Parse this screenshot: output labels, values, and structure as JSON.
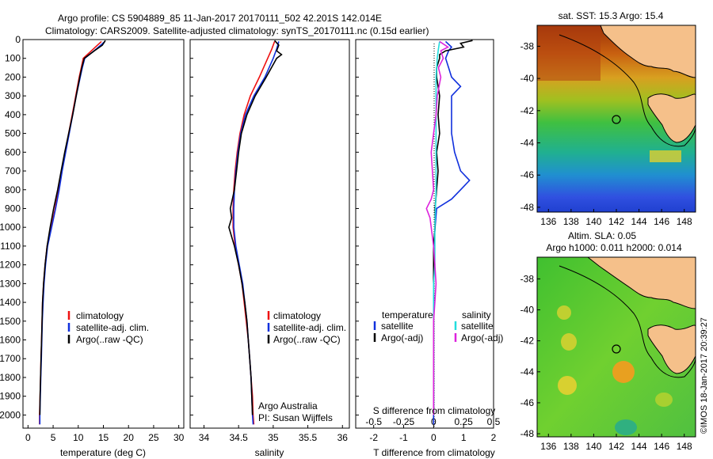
{
  "header": {
    "line1": "Argo profile: CS 5904889_85 11-Jan-2017 20170111_502 42.201S 142.014E",
    "line2": "Climatology: CARS2009. Satellite-adjusted climatology: synTS_20170111.nc (0.15d earlier)"
  },
  "colors": {
    "climatology": "#ee1111",
    "satellite": "#1030dd",
    "argo": "#000000",
    "argo_s": "#dd22dd",
    "satellite_s": "#22dddd",
    "land": "#f5c08a",
    "coast": "#000000"
  },
  "legends": {
    "profile": [
      "climatology",
      "satellite-adj. clim.",
      "Argo(..raw -QC)"
    ],
    "diff_temperature_title": "temperature",
    "diff_salinity_title": "salinity",
    "diff_items": [
      "satellite",
      "Argo(-adj)"
    ]
  },
  "credits": {
    "line1": "Argo Australia",
    "line2": "PI: Susan Wijffels",
    "imos": "©IMOS 18-Jan-2017 20:39:27"
  },
  "maps": {
    "sst_title": "sat. SST: 15.3 Argo: 15.4",
    "sla_title1": "Altim. SLA: 0.05",
    "sla_title2": "Argo h1000: 0.011 h2000: 0.014",
    "lon_ticks": [
      "136",
      "138",
      "140",
      "142",
      "144",
      "146",
      "148"
    ],
    "lat_ticks": [
      "-38",
      "-40",
      "-42",
      "-44",
      "-46",
      "-48"
    ]
  },
  "chart_data": [
    {
      "type": "line",
      "panel": "temperature",
      "xlabel": "temperature (deg C)",
      "xlim": [
        -1,
        31
      ],
      "ylim": [
        2070,
        0
      ],
      "x_ticks": [
        "0",
        "5",
        "10",
        "15",
        "20",
        "25",
        "30"
      ],
      "y_ticks": [
        "0",
        "100",
        "200",
        "300",
        "400",
        "500",
        "600",
        "700",
        "800",
        "900",
        "1000",
        "1100",
        "1200",
        "1300",
        "1400",
        "1500",
        "1600",
        "1700",
        "1800",
        "1900",
        "2000"
      ],
      "series": [
        {
          "name": "climatology",
          "depth": [
            10,
            50,
            100,
            150,
            200,
            300,
            400,
            500,
            600,
            700,
            800,
            900,
            1000,
            1100,
            1200,
            1300,
            1400,
            1500,
            1600,
            1700,
            1800,
            1900,
            2000,
            2050
          ],
          "values": [
            14.6,
            13.0,
            11.0,
            10.6,
            10.2,
            9.5,
            8.8,
            8.1,
            7.4,
            6.7,
            6.0,
            5.4,
            4.6,
            3.8,
            3.4,
            3.1,
            2.9,
            2.8,
            2.7,
            2.6,
            2.5,
            2.4,
            2.3,
            2.3
          ]
        },
        {
          "name": "satellite-adj. clim.",
          "depth": [
            10,
            50,
            100,
            150,
            200,
            300,
            400,
            500,
            600,
            700,
            800,
            900,
            1000,
            1100,
            1200,
            1300,
            1400,
            1500,
            1600,
            1700,
            1800,
            1900,
            2000,
            2050
          ],
          "values": [
            15.3,
            13.6,
            11.3,
            10.8,
            10.4,
            9.6,
            8.9,
            8.2,
            7.5,
            6.8,
            6.2,
            5.5,
            4.7,
            3.9,
            3.5,
            3.2,
            3.0,
            2.85,
            2.75,
            2.65,
            2.55,
            2.45,
            2.35,
            2.35
          ]
        },
        {
          "name": "Argo(..raw -QC)",
          "depth": [
            5,
            30,
            60,
            100,
            150,
            200,
            300,
            400,
            500,
            600,
            700,
            800,
            900,
            1000,
            1100,
            1200,
            1300,
            1400,
            1500,
            1600,
            1700,
            1800,
            1900,
            2000
          ],
          "values": [
            15.4,
            14.8,
            13.2,
            11.2,
            10.7,
            10.3,
            9.6,
            8.9,
            8.1,
            7.3,
            6.6,
            5.9,
            5.1,
            4.4,
            3.8,
            3.4,
            3.1,
            2.9,
            2.8,
            2.7,
            2.6,
            2.5,
            2.4,
            2.35
          ]
        }
      ]
    },
    {
      "type": "line",
      "panel": "salinity",
      "xlabel": "salinity",
      "xlim": [
        33.8,
        36.1
      ],
      "ylim": [
        2070,
        0
      ],
      "x_ticks": [
        "34",
        "34.5",
        "35",
        "35.5",
        "36"
      ],
      "series": [
        {
          "name": "climatology",
          "depth": [
            10,
            50,
            100,
            200,
            300,
            400,
            500,
            600,
            700,
            800,
            900,
            1000,
            1100,
            1200,
            1300,
            1400,
            1500,
            1600,
            1700,
            1800,
            1900,
            2000,
            2050
          ],
          "values": [
            35.02,
            34.98,
            34.92,
            34.8,
            34.67,
            34.58,
            34.52,
            34.48,
            34.45,
            34.43,
            34.42,
            34.42,
            34.45,
            34.5,
            34.55,
            34.58,
            34.61,
            34.64,
            34.66,
            34.68,
            34.7,
            34.71,
            34.72
          ]
        },
        {
          "name": "satellite-adj. clim.",
          "depth": [
            10,
            50,
            100,
            200,
            300,
            400,
            500,
            600,
            700,
            800,
            900,
            1000,
            1100,
            1200,
            1300,
            1400,
            1500,
            1600,
            1700,
            1800,
            1900,
            2000,
            2050
          ],
          "values": [
            35.08,
            35.05,
            35.0,
            34.88,
            34.72,
            34.6,
            34.53,
            34.49,
            34.46,
            34.44,
            34.43,
            34.43,
            34.46,
            34.51,
            34.56,
            34.59,
            34.62,
            34.64,
            34.66,
            34.68,
            34.69,
            34.7,
            34.71
          ]
        },
        {
          "name": "Argo(..raw -QC)",
          "depth": [
            5,
            30,
            60,
            80,
            100,
            200,
            300,
            400,
            500,
            600,
            700,
            800,
            900,
            950,
            1000,
            1050,
            1100,
            1200,
            1300,
            1400,
            1500,
            1600,
            1700,
            1800,
            1900,
            2000
          ],
          "values": [
            35.02,
            35.08,
            35.05,
            35.12,
            35.05,
            34.9,
            34.74,
            34.62,
            34.54,
            34.5,
            34.47,
            34.44,
            34.38,
            34.4,
            34.36,
            34.4,
            34.44,
            34.5,
            34.55,
            34.59,
            34.62,
            34.64,
            34.66,
            34.68,
            34.69,
            34.7
          ]
        }
      ]
    },
    {
      "type": "line",
      "panel": "difference",
      "xlabel": "T difference from climatology",
      "xlabel_top": "S difference from climatology",
      "xlim": [
        -2.6,
        2.0
      ],
      "ylim": [
        2070,
        0
      ],
      "x_ticks": [
        "-2",
        "-1",
        "0",
        "1",
        "2"
      ],
      "x_ticks_s": [
        "-0.5",
        "-0.25",
        "0",
        "0.25",
        "0.5"
      ],
      "series": [
        {
          "name": "T satellite",
          "depth": [
            10,
            40,
            60,
            100,
            150,
            200,
            250,
            300,
            400,
            500,
            600,
            700,
            750,
            800,
            850,
            900,
            1000,
            1100,
            1200,
            1400,
            1600,
            1800,
            2000,
            2050
          ],
          "values": [
            0.4,
            0.6,
            0.5,
            0.4,
            0.5,
            0.6,
            0.9,
            0.6,
            0.6,
            0.6,
            0.7,
            0.9,
            1.2,
            0.9,
            0.6,
            0.1,
            0.05,
            0.0,
            0.0,
            0.0,
            0.0,
            0.0,
            0.0,
            0.0
          ]
        },
        {
          "name": "T Argo(-adj)",
          "depth": [
            5,
            20,
            40,
            60,
            80,
            100,
            150,
            200,
            300,
            400,
            500,
            600,
            700,
            800,
            900,
            1000,
            1100,
            1200,
            1400,
            1600,
            1800,
            2000
          ],
          "values": [
            1.3,
            0.9,
            1.0,
            0.4,
            0.2,
            0.2,
            0.1,
            0.1,
            0.2,
            0.15,
            0.2,
            0.1,
            0.15,
            0.1,
            0.05,
            0.05,
            0.0,
            0.0,
            0.0,
            0.0,
            0.0,
            0.0
          ]
        },
        {
          "name": "S satellite",
          "depth": [
            10,
            50,
            100,
            200,
            400,
            600,
            800,
            1000,
            1200,
            1300,
            1400,
            1600,
            1800,
            2000
          ],
          "values": [
            0.05,
            0.04,
            0.03,
            0.02,
            0.02,
            0.02,
            0.02,
            0.01,
            0.01,
            0.0,
            0.0,
            0.0,
            0.0,
            0.0
          ]
        },
        {
          "name": "S Argo(-adj)",
          "depth": [
            10,
            40,
            60,
            100,
            150,
            200,
            300,
            400,
            500,
            600,
            700,
            800,
            850,
            900,
            950,
            1000,
            1100,
            1200,
            1300,
            1400,
            1500,
            1600,
            1800,
            2000
          ],
          "values": [
            0.05,
            0.12,
            0.06,
            0.08,
            0.04,
            0.06,
            0.03,
            0.02,
            0.0,
            -0.02,
            -0.01,
            0.0,
            -0.02,
            -0.06,
            -0.03,
            -0.02,
            0.0,
            0.01,
            0.02,
            0.01,
            0.0,
            0.0,
            0.0,
            0.0
          ]
        }
      ]
    }
  ]
}
